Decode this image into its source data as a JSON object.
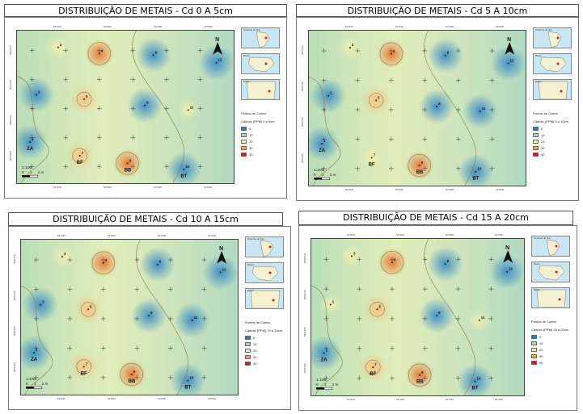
{
  "coord_labels": {
    "easting": [
      "527615",
      "527620",
      "527625",
      "527630"
    ],
    "northing": [
      "8601500",
      "8601505",
      "8601510",
      "8601515"
    ]
  },
  "scale": {
    "ratio": "1:100",
    "ticks": [
      "0",
      "1",
      "2 m"
    ]
  },
  "minimaps": [
    "América do Sul",
    "Brasil",
    "Bahia"
  ],
  "legend_points_label": "Pontos de Coleta",
  "legend_classes": [
    {
      "value": "0",
      "color": "#2b7bb9"
    },
    {
      "value": "10",
      "color": "#a6d9b4"
    },
    {
      "value": "20",
      "color": "#f2f0b4"
    },
    {
      "value": "30",
      "color": "#f4a25e"
    },
    {
      "value": "40",
      "color": "#d7191c"
    }
  ],
  "colors": {
    "base": "#dcebb6",
    "low": "#2b7bb9",
    "high": "#e8742f",
    "contour": "#8a7a3e"
  },
  "panels": [
    {
      "id": "cd-0-5",
      "title": "DISTRIBUIÇÃO DE METAIS - Cd 0 A 5cm",
      "legend_title": "Cádmio (PPM) 0 a 5cm",
      "points": [
        {
          "n": "1",
          "x": 0.06,
          "y": 0.73,
          "v": "low"
        },
        {
          "n": "2",
          "x": 0.09,
          "y": 0.42,
          "v": "low"
        },
        {
          "n": "3",
          "x": 0.19,
          "y": 0.11,
          "v": "mid"
        },
        {
          "n": "4",
          "x": 0.38,
          "y": 0.15,
          "v": "high"
        },
        {
          "n": "5",
          "x": 0.31,
          "y": 0.45,
          "v": "mhigh"
        },
        {
          "n": "6",
          "x": 0.63,
          "y": 0.16,
          "v": "low"
        },
        {
          "n": "7",
          "x": 0.29,
          "y": 0.82,
          "v": "mhigh"
        },
        {
          "n": "8",
          "x": 0.59,
          "y": 0.49,
          "v": "low"
        },
        {
          "n": "9",
          "x": 0.51,
          "y": 0.87,
          "v": "high"
        },
        {
          "n": "10",
          "x": 0.77,
          "y": 0.91,
          "v": "low"
        },
        {
          "n": "11",
          "x": 0.79,
          "y": 0.52,
          "v": "mid"
        },
        {
          "n": "12",
          "x": 0.92,
          "y": 0.21,
          "v": "low"
        }
      ]
    },
    {
      "id": "cd-5-10",
      "title": "DISTRIBUIÇÃO DE METAIS - Cd 5 A 10cm",
      "legend_title": "Cádmio (PPM) 5 a 10cm",
      "points": [
        {
          "n": "1",
          "x": 0.06,
          "y": 0.73,
          "v": "low"
        },
        {
          "n": "2",
          "x": 0.09,
          "y": 0.42,
          "v": "low"
        },
        {
          "n": "3",
          "x": 0.19,
          "y": 0.11,
          "v": "mid"
        },
        {
          "n": "4",
          "x": 0.38,
          "y": 0.15,
          "v": "high"
        },
        {
          "n": "5",
          "x": 0.31,
          "y": 0.45,
          "v": "mhigh"
        },
        {
          "n": "6",
          "x": 0.63,
          "y": 0.16,
          "v": "low"
        },
        {
          "n": "7",
          "x": 0.29,
          "y": 0.82,
          "v": "mid"
        },
        {
          "n": "8",
          "x": 0.59,
          "y": 0.49,
          "v": "low"
        },
        {
          "n": "9",
          "x": 0.51,
          "y": 0.87,
          "v": "high"
        },
        {
          "n": "10",
          "x": 0.77,
          "y": 0.91,
          "v": "low"
        },
        {
          "n": "11",
          "x": 0.79,
          "y": 0.52,
          "v": "low"
        },
        {
          "n": "12",
          "x": 0.92,
          "y": 0.21,
          "v": "low"
        }
      ]
    },
    {
      "id": "cd-10-15",
      "title": "DISTRIBUIÇÃO DE METAIS - Cd 10 A 15cm",
      "legend_title": "Cádmio (PPM) 10 a 15cm",
      "points": [
        {
          "n": "1",
          "x": 0.06,
          "y": 0.73,
          "v": "low"
        },
        {
          "n": "2",
          "x": 0.09,
          "y": 0.42,
          "v": "low"
        },
        {
          "n": "3",
          "x": 0.19,
          "y": 0.11,
          "v": "mid"
        },
        {
          "n": "4",
          "x": 0.38,
          "y": 0.15,
          "v": "high"
        },
        {
          "n": "5",
          "x": 0.31,
          "y": 0.45,
          "v": "mhigh"
        },
        {
          "n": "6",
          "x": 0.63,
          "y": 0.16,
          "v": "low"
        },
        {
          "n": "7",
          "x": 0.29,
          "y": 0.82,
          "v": "mhigh"
        },
        {
          "n": "8",
          "x": 0.59,
          "y": 0.49,
          "v": "low"
        },
        {
          "n": "9",
          "x": 0.51,
          "y": 0.87,
          "v": "high"
        },
        {
          "n": "10",
          "x": 0.77,
          "y": 0.91,
          "v": "low"
        },
        {
          "n": "11",
          "x": 0.79,
          "y": 0.52,
          "v": "low"
        },
        {
          "n": "12",
          "x": 0.92,
          "y": 0.21,
          "v": "low"
        }
      ]
    },
    {
      "id": "cd-15-20",
      "title": "DISTRIBUIÇÃO DE METAIS - Cd 15 A 20cm",
      "legend_title": "Cádmio (PPM) 15 a 20cm",
      "points": [
        {
          "n": "1",
          "x": 0.06,
          "y": 0.73,
          "v": "low"
        },
        {
          "n": "2",
          "x": 0.09,
          "y": 0.42,
          "v": "mid"
        },
        {
          "n": "3",
          "x": 0.19,
          "y": 0.11,
          "v": "mid"
        },
        {
          "n": "4",
          "x": 0.38,
          "y": 0.15,
          "v": "high"
        },
        {
          "n": "5",
          "x": 0.31,
          "y": 0.45,
          "v": "mhigh"
        },
        {
          "n": "6",
          "x": 0.63,
          "y": 0.16,
          "v": "low"
        },
        {
          "n": "7",
          "x": 0.29,
          "y": 0.82,
          "v": "mhigh"
        },
        {
          "n": "8",
          "x": 0.59,
          "y": 0.49,
          "v": "low"
        },
        {
          "n": "9",
          "x": 0.51,
          "y": 0.87,
          "v": "high"
        },
        {
          "n": "10",
          "x": 0.77,
          "y": 0.91,
          "v": "low"
        },
        {
          "n": "11",
          "x": 0.79,
          "y": 0.52,
          "v": "mid"
        },
        {
          "n": "12",
          "x": 0.92,
          "y": 0.21,
          "v": "low"
        }
      ]
    }
  ],
  "site_labels": [
    "ZA",
    "BF",
    "BB",
    "BT"
  ]
}
